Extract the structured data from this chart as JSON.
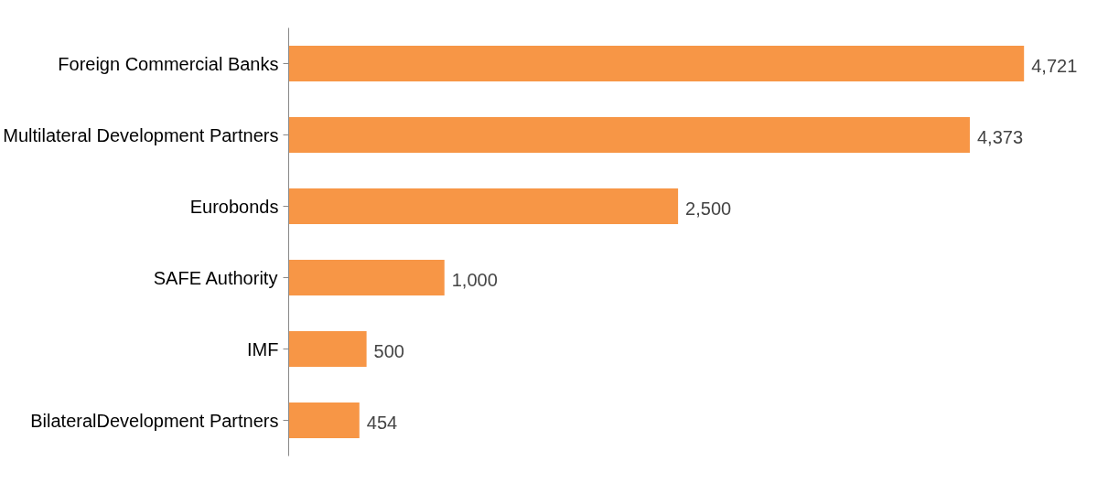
{
  "chart_data": {
    "type": "bar",
    "orientation": "horizontal",
    "categories": [
      "Foreign Commercial Banks",
      "Multilateral Development Partners",
      "Eurobonds",
      "SAFE Authority",
      "IMF",
      "BilateralDevelopment Partners"
    ],
    "values": [
      4721,
      4373,
      2500,
      1000,
      500,
      454
    ],
    "value_labels": [
      "4,721",
      "4,373",
      "2,500",
      "1,000",
      "500",
      "454"
    ],
    "color": "#f79646",
    "grid": false
  }
}
